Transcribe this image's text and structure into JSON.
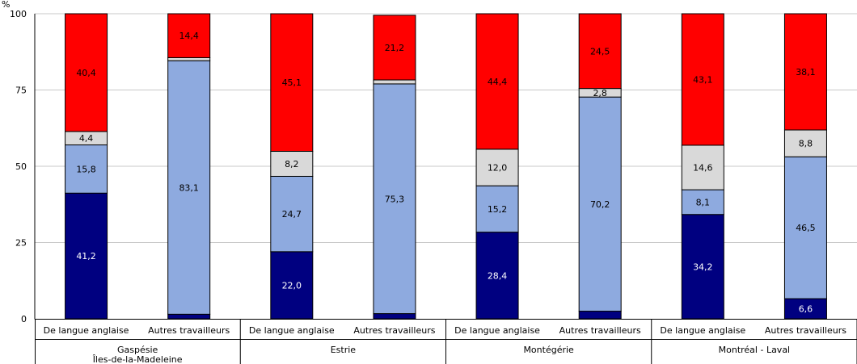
{
  "chart_data": {
    "type": "bar",
    "stacked": true,
    "y_unit_label": "%",
    "ylim": [
      0,
      100
    ],
    "yticks": [
      0,
      25,
      50,
      75,
      100
    ],
    "grid": "horizontal",
    "groups": [
      {
        "label_lines": [
          "Gaspésie",
          "Îles-de-la-Madeleine"
        ],
        "categories": [
          "De langue anglaise",
          "Autres travailleurs"
        ]
      },
      {
        "label_lines": [
          "Estrie"
        ],
        "categories": [
          "De langue anglaise",
          "Autres travailleurs"
        ]
      },
      {
        "label_lines": [
          "Montégérie"
        ],
        "categories": [
          "De langue anglaise",
          "Autres travailleurs"
        ]
      },
      {
        "label_lines": [
          "Montréal - Laval"
        ],
        "categories": [
          "De langue anglaise",
          "Autres travailleurs"
        ]
      }
    ],
    "series": [
      {
        "color": "#000080",
        "label_color": "#ffffff",
        "values": [
          41.2,
          1.5,
          22.0,
          1.7,
          28.4,
          2.5,
          34.2,
          6.6
        ],
        "labels": [
          "41,2",
          "",
          "22,0",
          "",
          "28,4",
          "",
          "34,2",
          "6,6"
        ]
      },
      {
        "color": "#8eaadf",
        "label_color": "#000000",
        "values": [
          15.8,
          83.1,
          24.7,
          75.3,
          15.2,
          70.2,
          8.1,
          46.5
        ],
        "labels": [
          "15,8",
          "83,1",
          "24,7",
          "75,3",
          "15,2",
          "70,2",
          "8,1",
          "46,5"
        ]
      },
      {
        "color": "#d9d9d9",
        "label_color": "#000000",
        "values": [
          4.4,
          1.0,
          8.2,
          1.3,
          12.0,
          2.8,
          14.6,
          8.8
        ],
        "labels": [
          "4,4",
          "",
          "8,2",
          "",
          "12,0",
          "2,8",
          "14,6",
          "8,8"
        ]
      },
      {
        "color": "#ff0000",
        "label_color": "#000000",
        "values": [
          40.4,
          14.4,
          45.1,
          21.2,
          44.4,
          24.5,
          43.1,
          38.1
        ],
        "labels": [
          "40,4",
          "14,4",
          "45,1",
          "21,2",
          "44,4",
          "24,5",
          "43,1",
          "38,1"
        ]
      }
    ]
  }
}
